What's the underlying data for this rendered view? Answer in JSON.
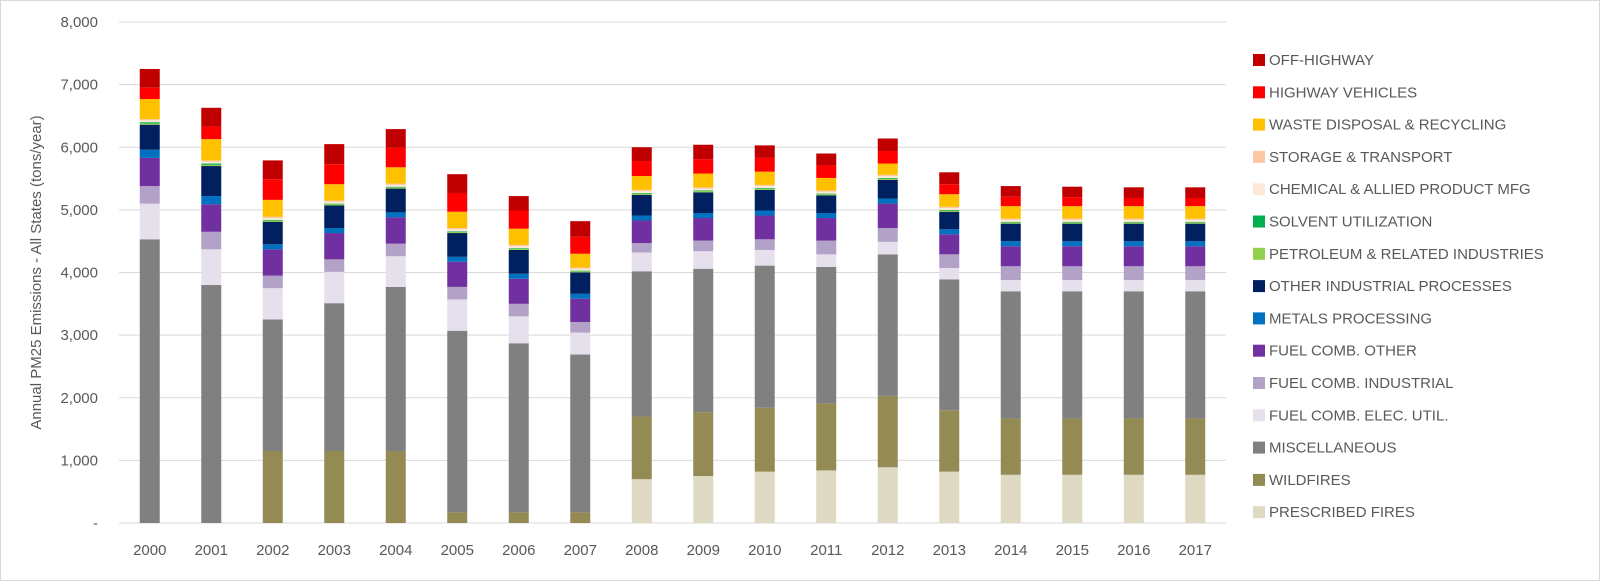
{
  "chart_data": {
    "type": "stacked_bar",
    "title": "",
    "xlabel": "",
    "ylabel": "Annual PM25 Emissions - All States  (tons/year)",
    "ylim": [
      0,
      8000
    ],
    "yticks": [
      0,
      1000,
      2000,
      3000,
      4000,
      5000,
      6000,
      7000,
      8000
    ],
    "ytick_labels": [
      "-",
      "1,000",
      "2,000",
      "3,000",
      "4,000",
      "5,000",
      "6,000",
      "7,000",
      "8,000"
    ],
    "grid": true,
    "legend_position": "right",
    "categories": [
      "2000",
      "2001",
      "2002",
      "2003",
      "2004",
      "2005",
      "2006",
      "2007",
      "2008",
      "2009",
      "2010",
      "2011",
      "2012",
      "2013",
      "2014",
      "2015",
      "2016",
      "2017"
    ],
    "series": [
      {
        "name": "PRESCRIBED FIRES",
        "color": "#ddd9c3",
        "values": [
          0,
          0,
          0,
          0,
          0,
          0,
          0,
          0,
          700,
          750,
          820,
          840,
          890,
          820,
          770,
          770,
          770,
          770
        ]
      },
      {
        "name": "WILDFIRES",
        "color": "#948a54",
        "values": [
          0,
          0,
          1150,
          1150,
          1150,
          170,
          170,
          170,
          1000,
          1020,
          1020,
          1070,
          1140,
          980,
          900,
          900,
          900,
          900
        ]
      },
      {
        "name": "MISCELLANEOUS",
        "color": "#808080",
        "values": [
          4530,
          3800,
          2100,
          2360,
          2620,
          2900,
          2700,
          2520,
          2320,
          2290,
          2270,
          2180,
          2260,
          2090,
          2030,
          2030,
          2030,
          2030
        ]
      },
      {
        "name": "FUEL COMB. ELEC. UTIL.",
        "color": "#e6e0ec",
        "values": [
          570,
          570,
          500,
          500,
          490,
          500,
          430,
          350,
          300,
          280,
          250,
          200,
          200,
          180,
          180,
          180,
          180,
          180
        ]
      },
      {
        "name": "FUEL COMB. INDUSTRIAL",
        "color": "#b3a2c7",
        "values": [
          280,
          280,
          200,
          200,
          200,
          200,
          200,
          170,
          150,
          170,
          170,
          220,
          220,
          220,
          220,
          220,
          220,
          220
        ]
      },
      {
        "name": "FUEL COMB. OTHER",
        "color": "#7030a0",
        "values": [
          450,
          440,
          420,
          420,
          420,
          400,
          400,
          370,
          360,
          360,
          380,
          360,
          390,
          320,
          320,
          320,
          320,
          320
        ]
      },
      {
        "name": "METALS PROCESSING",
        "color": "#0070c0",
        "values": [
          130,
          130,
          80,
          80,
          80,
          80,
          80,
          80,
          80,
          80,
          80,
          80,
          80,
          80,
          80,
          80,
          80,
          80
        ]
      },
      {
        "name": "OTHER INDUSTRIAL PROCESSES",
        "color": "#002060",
        "values": [
          400,
          480,
          360,
          360,
          380,
          380,
          380,
          340,
          330,
          330,
          330,
          280,
          300,
          280,
          280,
          280,
          280,
          280
        ]
      },
      {
        "name": "PETROLEUM & RELATED INDUSTRIES",
        "color": "#92d050",
        "values": [
          20,
          20,
          20,
          20,
          20,
          20,
          20,
          20,
          20,
          20,
          20,
          20,
          20,
          20,
          20,
          20,
          20,
          20
        ]
      },
      {
        "name": "SOLVENT UTILIZATION",
        "color": "#00b050",
        "values": [
          20,
          20,
          10,
          10,
          10,
          10,
          10,
          10,
          10,
          10,
          10,
          10,
          10,
          10,
          10,
          10,
          10,
          10
        ]
      },
      {
        "name": "CHEMICAL & ALLIED PRODUCT MFG",
        "color": "#fde9d9",
        "values": [
          30,
          30,
          30,
          30,
          30,
          30,
          30,
          30,
          30,
          30,
          30,
          30,
          30,
          30,
          30,
          30,
          30,
          30
        ]
      },
      {
        "name": "STORAGE & TRANSPORT",
        "color": "#fbc7a4",
        "values": [
          20,
          20,
          20,
          20,
          20,
          20,
          20,
          20,
          20,
          20,
          20,
          20,
          20,
          20,
          20,
          20,
          20,
          20
        ]
      },
      {
        "name": "WASTE DISPOSAL & RECYCLING",
        "color": "#ffc000",
        "values": [
          320,
          340,
          270,
          260,
          260,
          260,
          260,
          220,
          220,
          220,
          210,
          200,
          180,
          200,
          200,
          200,
          200,
          200
        ]
      },
      {
        "name": "HIGHWAY VEHICLES",
        "color": "#ff0000",
        "values": [
          180,
          200,
          330,
          320,
          310,
          300,
          290,
          270,
          240,
          230,
          220,
          200,
          200,
          160,
          150,
          140,
          130,
          130
        ]
      },
      {
        "name": "OFF-HIGHWAY",
        "color": "#c00000",
        "values": [
          300,
          300,
          300,
          320,
          300,
          300,
          230,
          250,
          220,
          230,
          200,
          190,
          200,
          190,
          170,
          170,
          170,
          170
        ]
      }
    ]
  }
}
